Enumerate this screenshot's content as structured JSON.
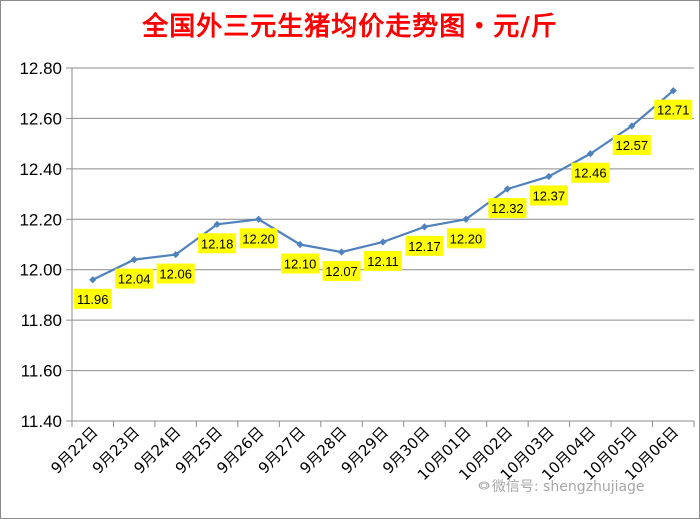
{
  "chart_data": {
    "type": "line",
    "title": "全国外三元生猪均价走势图・元/斤",
    "categories": [
      "9月22日",
      "9月23日",
      "9月24日",
      "9月25日",
      "9月26日",
      "9月27日",
      "9月28日",
      "9月29日",
      "9月30日",
      "10月01日",
      "10月02日",
      "10月03日",
      "10月04日",
      "10月05日",
      "10月06日"
    ],
    "values": [
      11.96,
      12.04,
      12.06,
      12.18,
      12.2,
      12.1,
      12.07,
      12.11,
      12.17,
      12.2,
      12.32,
      12.37,
      12.46,
      12.57,
      12.71
    ],
    "data_labels": [
      "11.96",
      "12.04",
      "12.06",
      "12.18",
      "12.20",
      "12.10",
      "12.07",
      "12.11",
      "12.17",
      "12.20",
      "12.32",
      "12.37",
      "12.46",
      "12.57",
      "12.71"
    ],
    "ylim": [
      11.4,
      12.8
    ],
    "yticks": [
      "11.40",
      "11.60",
      "11.80",
      "12.00",
      "12.20",
      "12.40",
      "12.60",
      "12.80"
    ],
    "grid": true,
    "legend": "none",
    "colors": {
      "line": "#4f81bd",
      "label_bg": "#ffff00",
      "title": "#ff0000"
    }
  },
  "watermark": {
    "icon": "wechat-icon",
    "glyph": "⭖",
    "text": "微信号: shengzhujiage"
  }
}
